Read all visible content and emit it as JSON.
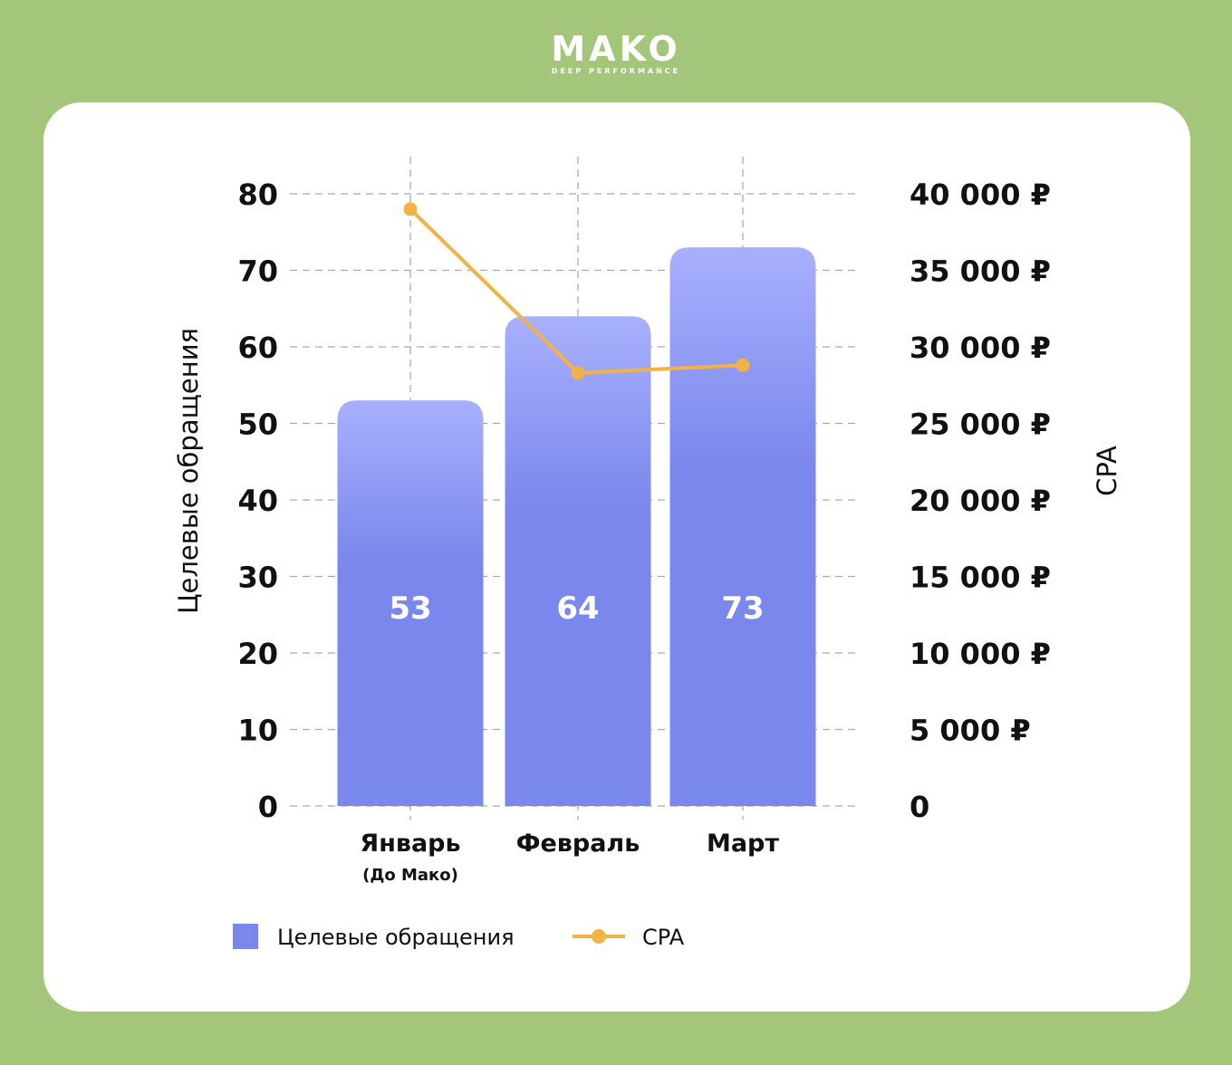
{
  "logo": {
    "name": "MAKO",
    "tagline": "DEEP PERFORMANCE"
  },
  "colors": {
    "bar_top": "#a8b0fd",
    "bar_bottom": "#7a87ec",
    "line": "#f2b245",
    "grid": "#aaaaaa",
    "background": "#a4c67a"
  },
  "chart_data": {
    "type": "bar+line",
    "categories": [
      "Январь",
      "Февраль",
      "Март"
    ],
    "category_sublabels": [
      "(До Мако)",
      "",
      ""
    ],
    "series": [
      {
        "name": "Целевые обращения",
        "type": "bar",
        "axis": "left",
        "values": [
          53,
          64,
          73
        ],
        "data_labels": [
          "53",
          "64",
          "73"
        ]
      },
      {
        "name": "CPA",
        "type": "line",
        "axis": "right",
        "values": [
          39000,
          28300,
          28800
        ]
      }
    ],
    "ylabel": "Целевые обращения",
    "y2label": "CPA",
    "ylim": [
      0,
      80
    ],
    "y2lim": [
      0,
      40000
    ],
    "yticks": [
      "0",
      "10",
      "20",
      "30",
      "40",
      "50",
      "60",
      "70",
      "80"
    ],
    "y2ticks": [
      "0",
      "5 000 ₽",
      "10 000 ₽",
      "15 000 ₽",
      "20 000 ₽",
      "25 000 ₽",
      "30 000 ₽",
      "35 000 ₽",
      "40 000 ₽"
    ],
    "grid": true,
    "legend": {
      "placement": "bottom-left",
      "entries": [
        "Целевые обращения",
        "CPA"
      ]
    }
  }
}
